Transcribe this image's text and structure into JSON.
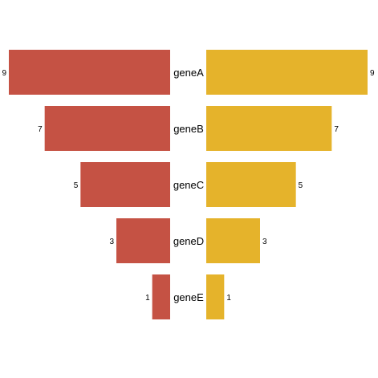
{
  "chart_data": {
    "type": "bar",
    "orientation": "horizontal",
    "layout": "mirrored-funnel",
    "categories": [
      "geneA",
      "geneB",
      "geneC",
      "geneD",
      "geneE"
    ],
    "series": [
      {
        "side": "left",
        "color": "#C55244",
        "values": [
          9,
          7,
          5,
          3,
          1
        ]
      },
      {
        "side": "right",
        "color": "#E5B32B",
        "values": [
          9,
          7,
          5,
          3,
          1
        ]
      }
    ],
    "title": "",
    "xlabel": "",
    "ylabel": "",
    "xlim": [
      0,
      9
    ],
    "grid": false,
    "legend": "none"
  }
}
